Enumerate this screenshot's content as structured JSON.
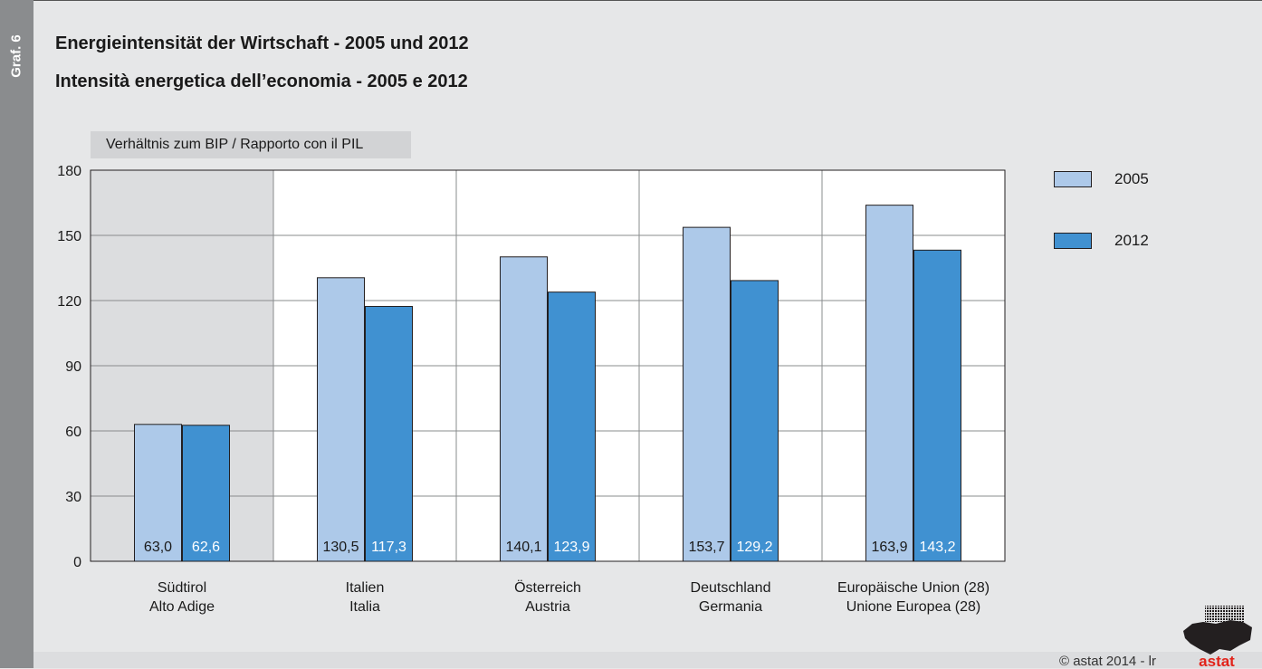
{
  "side_label": "Graf. 6",
  "title_de": "Energieintensität der Wirtschaft - 2005 und 2012",
  "title_it": "Intensità energetica dell’economia - 2005 e 2012",
  "unit_label": "Verhältnis zum BIP / Rapporto con il PIL",
  "copyright": "©  astat 2014 - lr",
  "logo_text": "astat",
  "colors": {
    "series_2005": "#adc9e9",
    "series_2012": "#4091d1",
    "highlight_band": "#dcdddf",
    "plot_bg": "#ffffff",
    "gridline": "#8a8c8e",
    "logo": "#e2231a"
  },
  "chart_data": {
    "type": "bar",
    "categories": [
      [
        "Südtirol",
        "Alto Adige"
      ],
      [
        "Italien",
        "Italia"
      ],
      [
        "Österreich",
        "Austria"
      ],
      [
        "Deutschland",
        "Germania"
      ],
      [
        "Europäische Union (28)",
        "Unione Europea (28)"
      ]
    ],
    "series": [
      {
        "name": "2005",
        "values": [
          63.0,
          130.5,
          140.1,
          153.7,
          163.9
        ],
        "labels": [
          "63,0",
          "130,5",
          "140,1",
          "153,7",
          "163,9"
        ]
      },
      {
        "name": "2012",
        "values": [
          62.6,
          117.3,
          123.9,
          129.2,
          143.2
        ],
        "labels": [
          "62,6",
          "117,3",
          "123,9",
          "129,2",
          "143,2"
        ]
      }
    ],
    "yticks": [
      "0",
      "30",
      "60",
      "90",
      "120",
      "150",
      "180"
    ],
    "ylim": [
      0,
      180
    ],
    "highlighted_category": 0,
    "grid": true,
    "legend_position": "right"
  }
}
